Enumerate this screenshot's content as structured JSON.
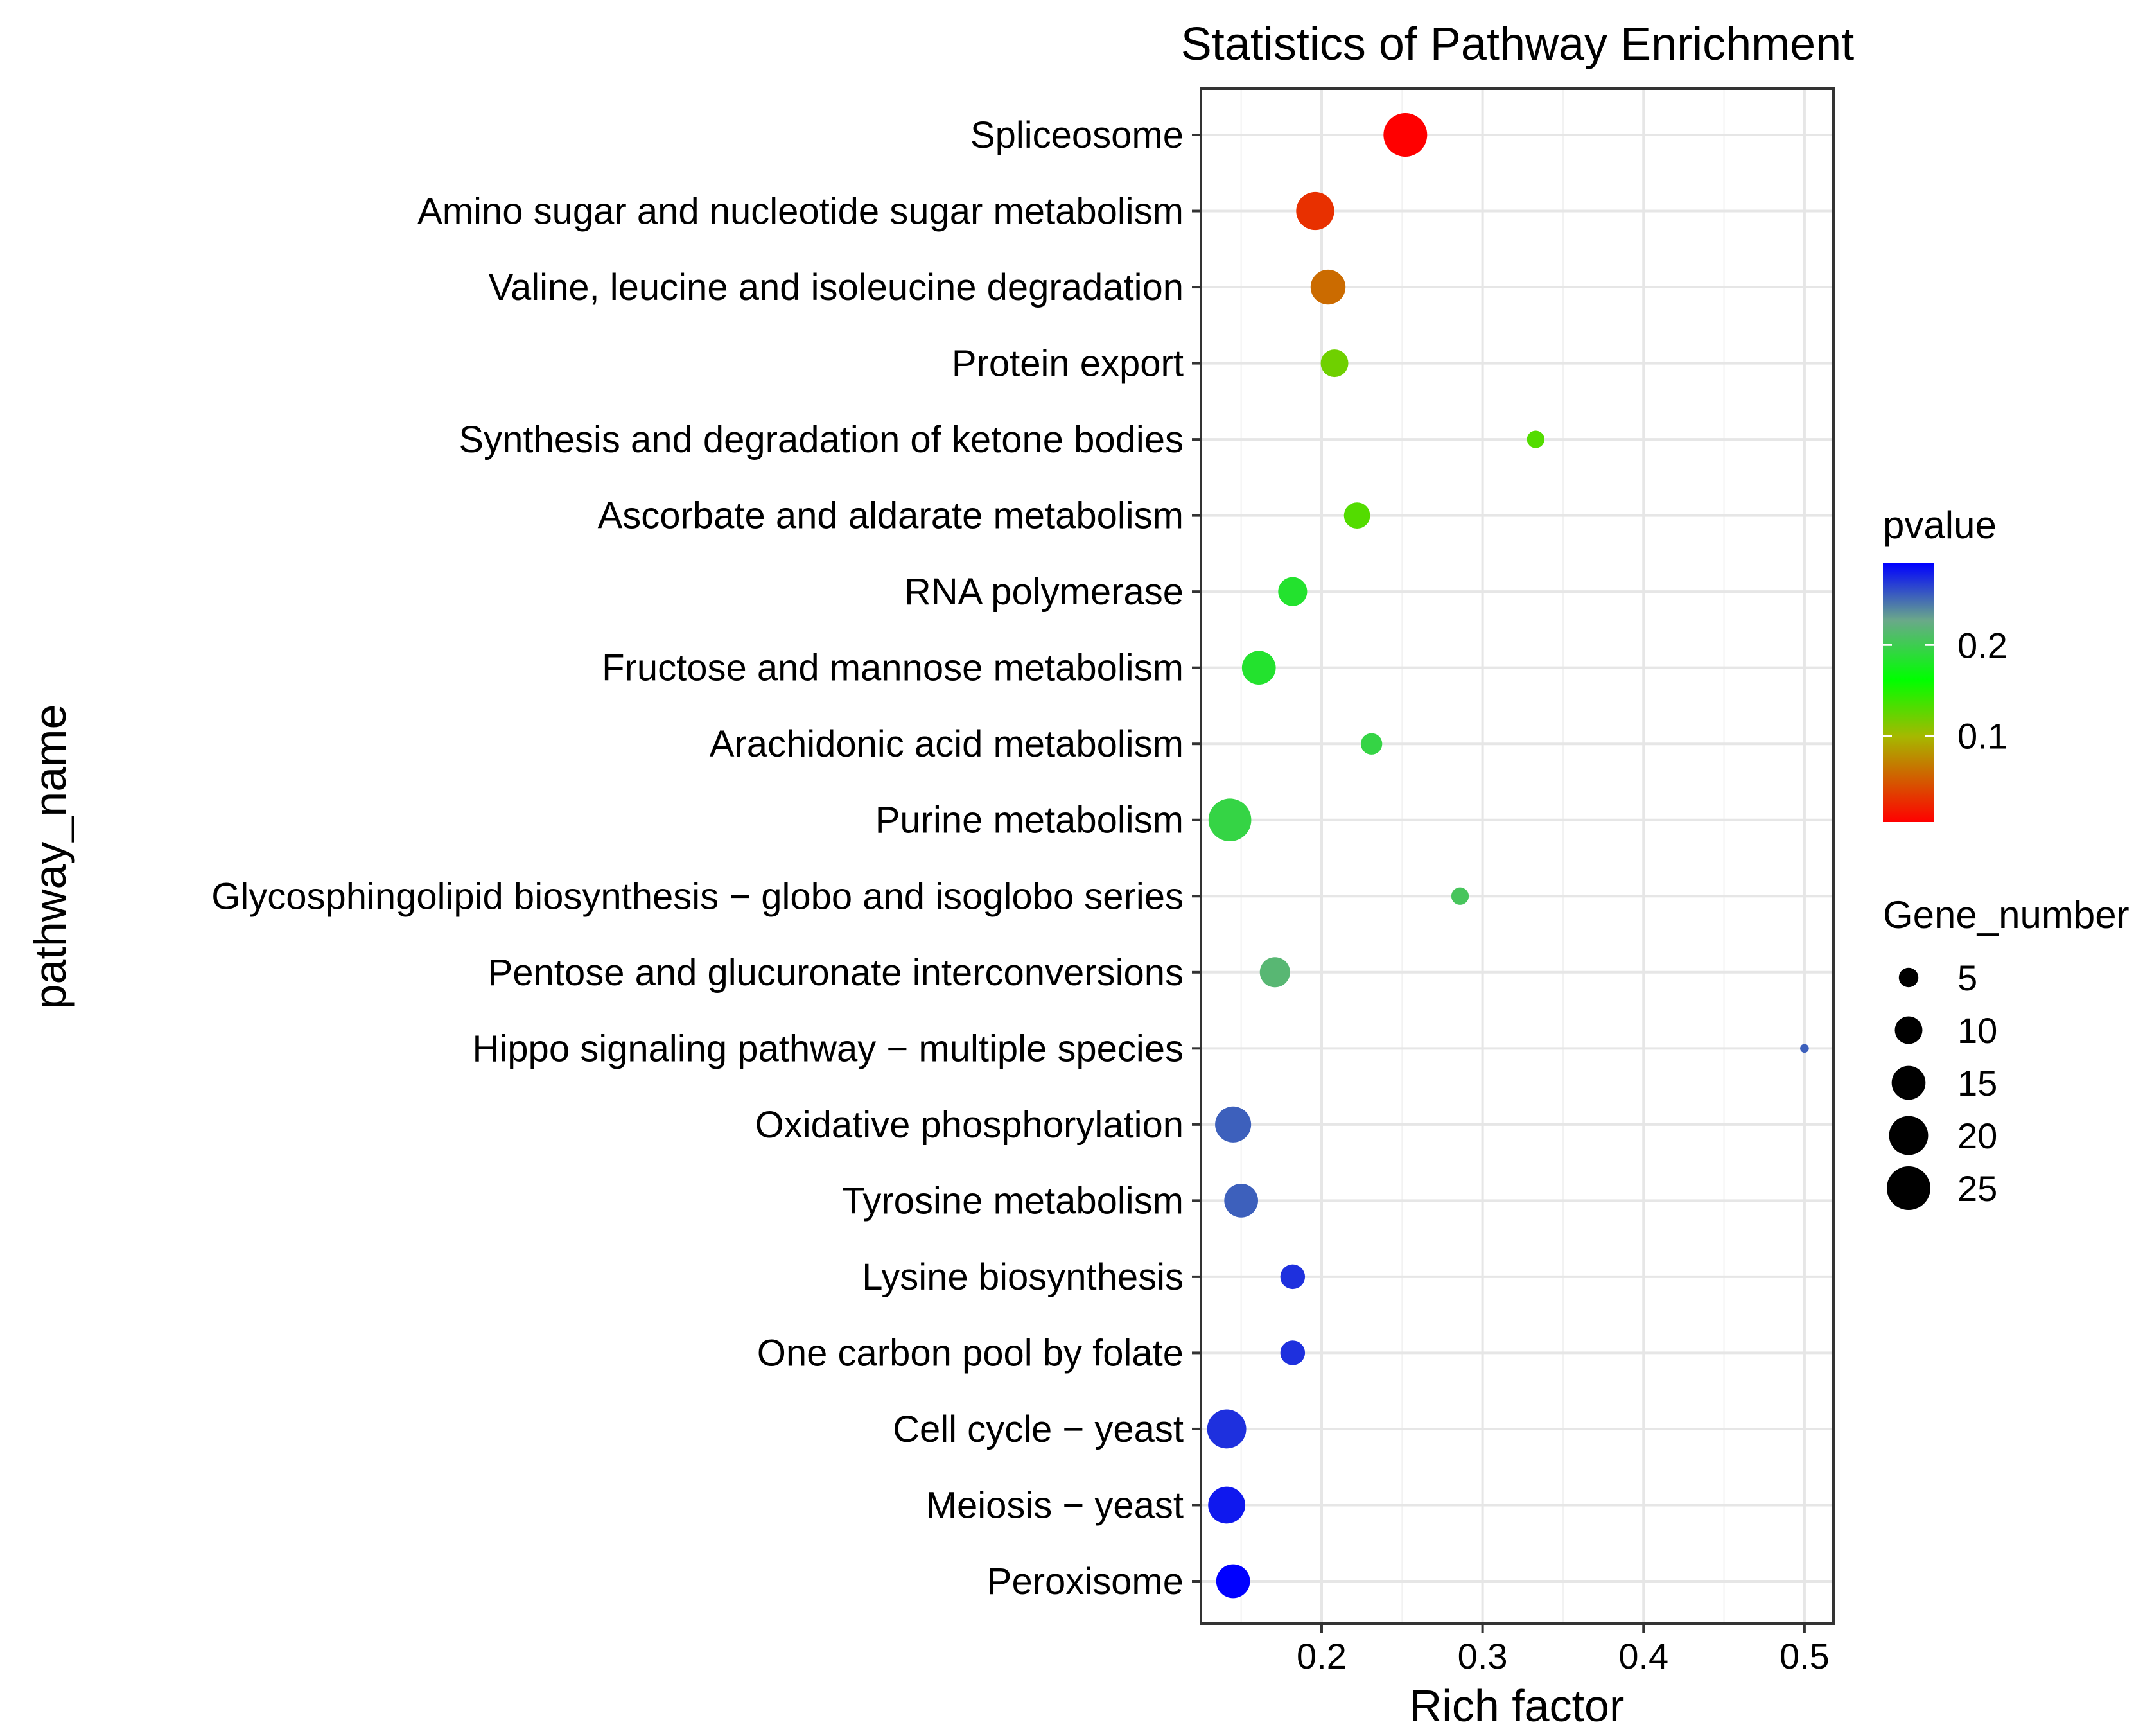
{
  "chart_data": {
    "type": "scatter",
    "title": "Statistics of Pathway Enrichment",
    "xlabel": "Rich factor",
    "ylabel": "pathway_name",
    "xlim": [
      0.125,
      0.518
    ],
    "xticks": [
      0.2,
      0.3,
      0.4,
      0.5
    ],
    "xtick_labels": [
      "0.2",
      "0.3",
      "0.4",
      "0.5"
    ],
    "grid": true,
    "legend_position": "right",
    "categories": [
      "Spliceosome",
      "Amino sugar and nucleotide sugar metabolism",
      "Valine, leucine and isoleucine degradation",
      "Protein export",
      "Synthesis and degradation of ketone bodies",
      "Ascorbate and aldarate metabolism",
      "RNA polymerase",
      "Fructose and mannose metabolism",
      "Arachidonic acid metabolism",
      "Purine metabolism",
      "Glycosphingolipid biosynthesis − globo and isoglobo series",
      "Pentose and glucuronate interconversions",
      "Hippo signaling pathway − multiple species",
      "Oxidative phosphorylation",
      "Tyrosine metabolism",
      "Lysine biosynthesis",
      "One carbon pool by folate",
      "Cell cycle − yeast",
      "Meiosis − yeast",
      "Peroxisome"
    ],
    "rich_factor": [
      0.252,
      0.196,
      0.204,
      0.208,
      0.333,
      0.222,
      0.182,
      0.161,
      0.231,
      0.143,
      0.286,
      0.171,
      0.5,
      0.145,
      0.15,
      0.182,
      0.182,
      0.141,
      0.141,
      0.145
    ],
    "gene_number": [
      25,
      19,
      16,
      10,
      4,
      9,
      11,
      15,
      6,
      24,
      4,
      12,
      1,
      17,
      15,
      8,
      8,
      20,
      18,
      15
    ],
    "pvalue": [
      0.005,
      0.03,
      0.06,
      0.12,
      0.13,
      0.13,
      0.18,
      0.18,
      0.19,
      0.19,
      0.2,
      0.21,
      0.25,
      0.25,
      0.25,
      0.27,
      0.27,
      0.27,
      0.28,
      0.29
    ],
    "color_legend": {
      "title": "pvalue",
      "range": [
        0.005,
        0.29
      ],
      "ticks": [
        0.2,
        0.1
      ],
      "tick_labels": [
        "0.2",
        "0.1"
      ],
      "colors_low_to_high": [
        "#ff0000",
        "#00ff00",
        "#0000ff"
      ]
    },
    "size_legend": {
      "title": "Gene_number",
      "values": [
        5,
        10,
        15,
        20,
        25
      ],
      "labels": [
        "5",
        "10",
        "15",
        "20",
        "25"
      ]
    }
  }
}
